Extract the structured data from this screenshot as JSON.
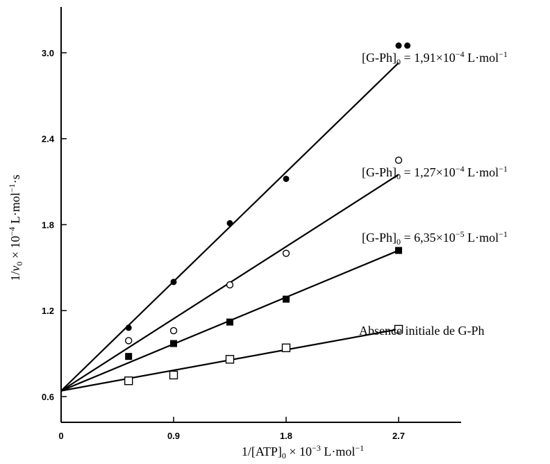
{
  "chart_data": {
    "type": "scatter",
    "title": "",
    "xlim": [
      0,
      3.2
    ],
    "ylim": [
      0.42,
      3.32
    ],
    "x_ticks": [
      0,
      0.9,
      1.8,
      2.7
    ],
    "y_ticks": [
      0.6,
      1.2,
      1.8,
      2.4,
      3.0
    ],
    "x_tick_labels": [
      "0",
      "0.9",
      "1.8",
      "2.7"
    ],
    "y_tick_labels": [
      "0.6",
      "1.2",
      "1.8",
      "2.4",
      "3.0"
    ],
    "xlabel": {
      "pre": "1/[ATP]",
      "sub": "0",
      "mid": " × 10",
      "sup": "−3",
      "post": " L·mol"
    },
    "ylabel": {
      "pre": "1/",
      "var": "v",
      "sub": "0",
      "mid": " × 10",
      "sup": "−4",
      "post": " L·mol",
      "sup2": "−1",
      "end": "·s"
    },
    "grid": false,
    "series": [
      {
        "name": "1.91e-4",
        "marker": "filled-circle",
        "label": {
          "a": "[G-Ph]",
          "sub": "0",
          "b": " = 1,91×10",
          "sup": "−4",
          "c": " L·mol",
          "sup2": "−1"
        },
        "x": [
          0.54,
          0.9,
          1.35,
          1.8,
          2.7,
          2.77
        ],
        "y": [
          1.08,
          1.4,
          1.81,
          2.12,
          3.05,
          3.05
        ],
        "fit": [
          [
            0,
            0.64
          ],
          [
            2.7,
            2.93
          ]
        ]
      },
      {
        "name": "1.27e-4",
        "marker": "open-circle",
        "label": {
          "a": "[G-Ph]",
          "sub": "0",
          "b": " = 1,27×10",
          "sup": "−4",
          "c": " L·mol",
          "sup2": "−1"
        },
        "x": [
          0.54,
          0.9,
          1.35,
          1.8,
          2.7
        ],
        "y": [
          0.99,
          1.06,
          1.38,
          1.6,
          2.25
        ],
        "fit": [
          [
            0,
            0.64
          ],
          [
            2.7,
            2.15
          ]
        ]
      },
      {
        "name": "6.35e-5",
        "marker": "filled-square",
        "label": {
          "a": "[G-Ph]",
          "sub": "0",
          "b": " = 6,35×10",
          "sup": "−5",
          "c": " L·mol",
          "sup2": "−1"
        },
        "x": [
          0.54,
          0.9,
          1.35,
          1.8,
          2.7
        ],
        "y": [
          0.88,
          0.97,
          1.12,
          1.28,
          1.62
        ],
        "fit": [
          [
            0,
            0.64
          ],
          [
            2.7,
            1.62
          ]
        ]
      },
      {
        "name": "absence",
        "marker": "open-square",
        "label": {
          "text": "Absence initiale de G-Ph"
        },
        "x": [
          0.54,
          0.9,
          1.35,
          1.8,
          2.7
        ],
        "y": [
          0.71,
          0.75,
          0.86,
          0.94,
          1.07
        ],
        "fit": [
          [
            0,
            0.64
          ],
          [
            2.7,
            1.07
          ]
        ]
      }
    ]
  }
}
